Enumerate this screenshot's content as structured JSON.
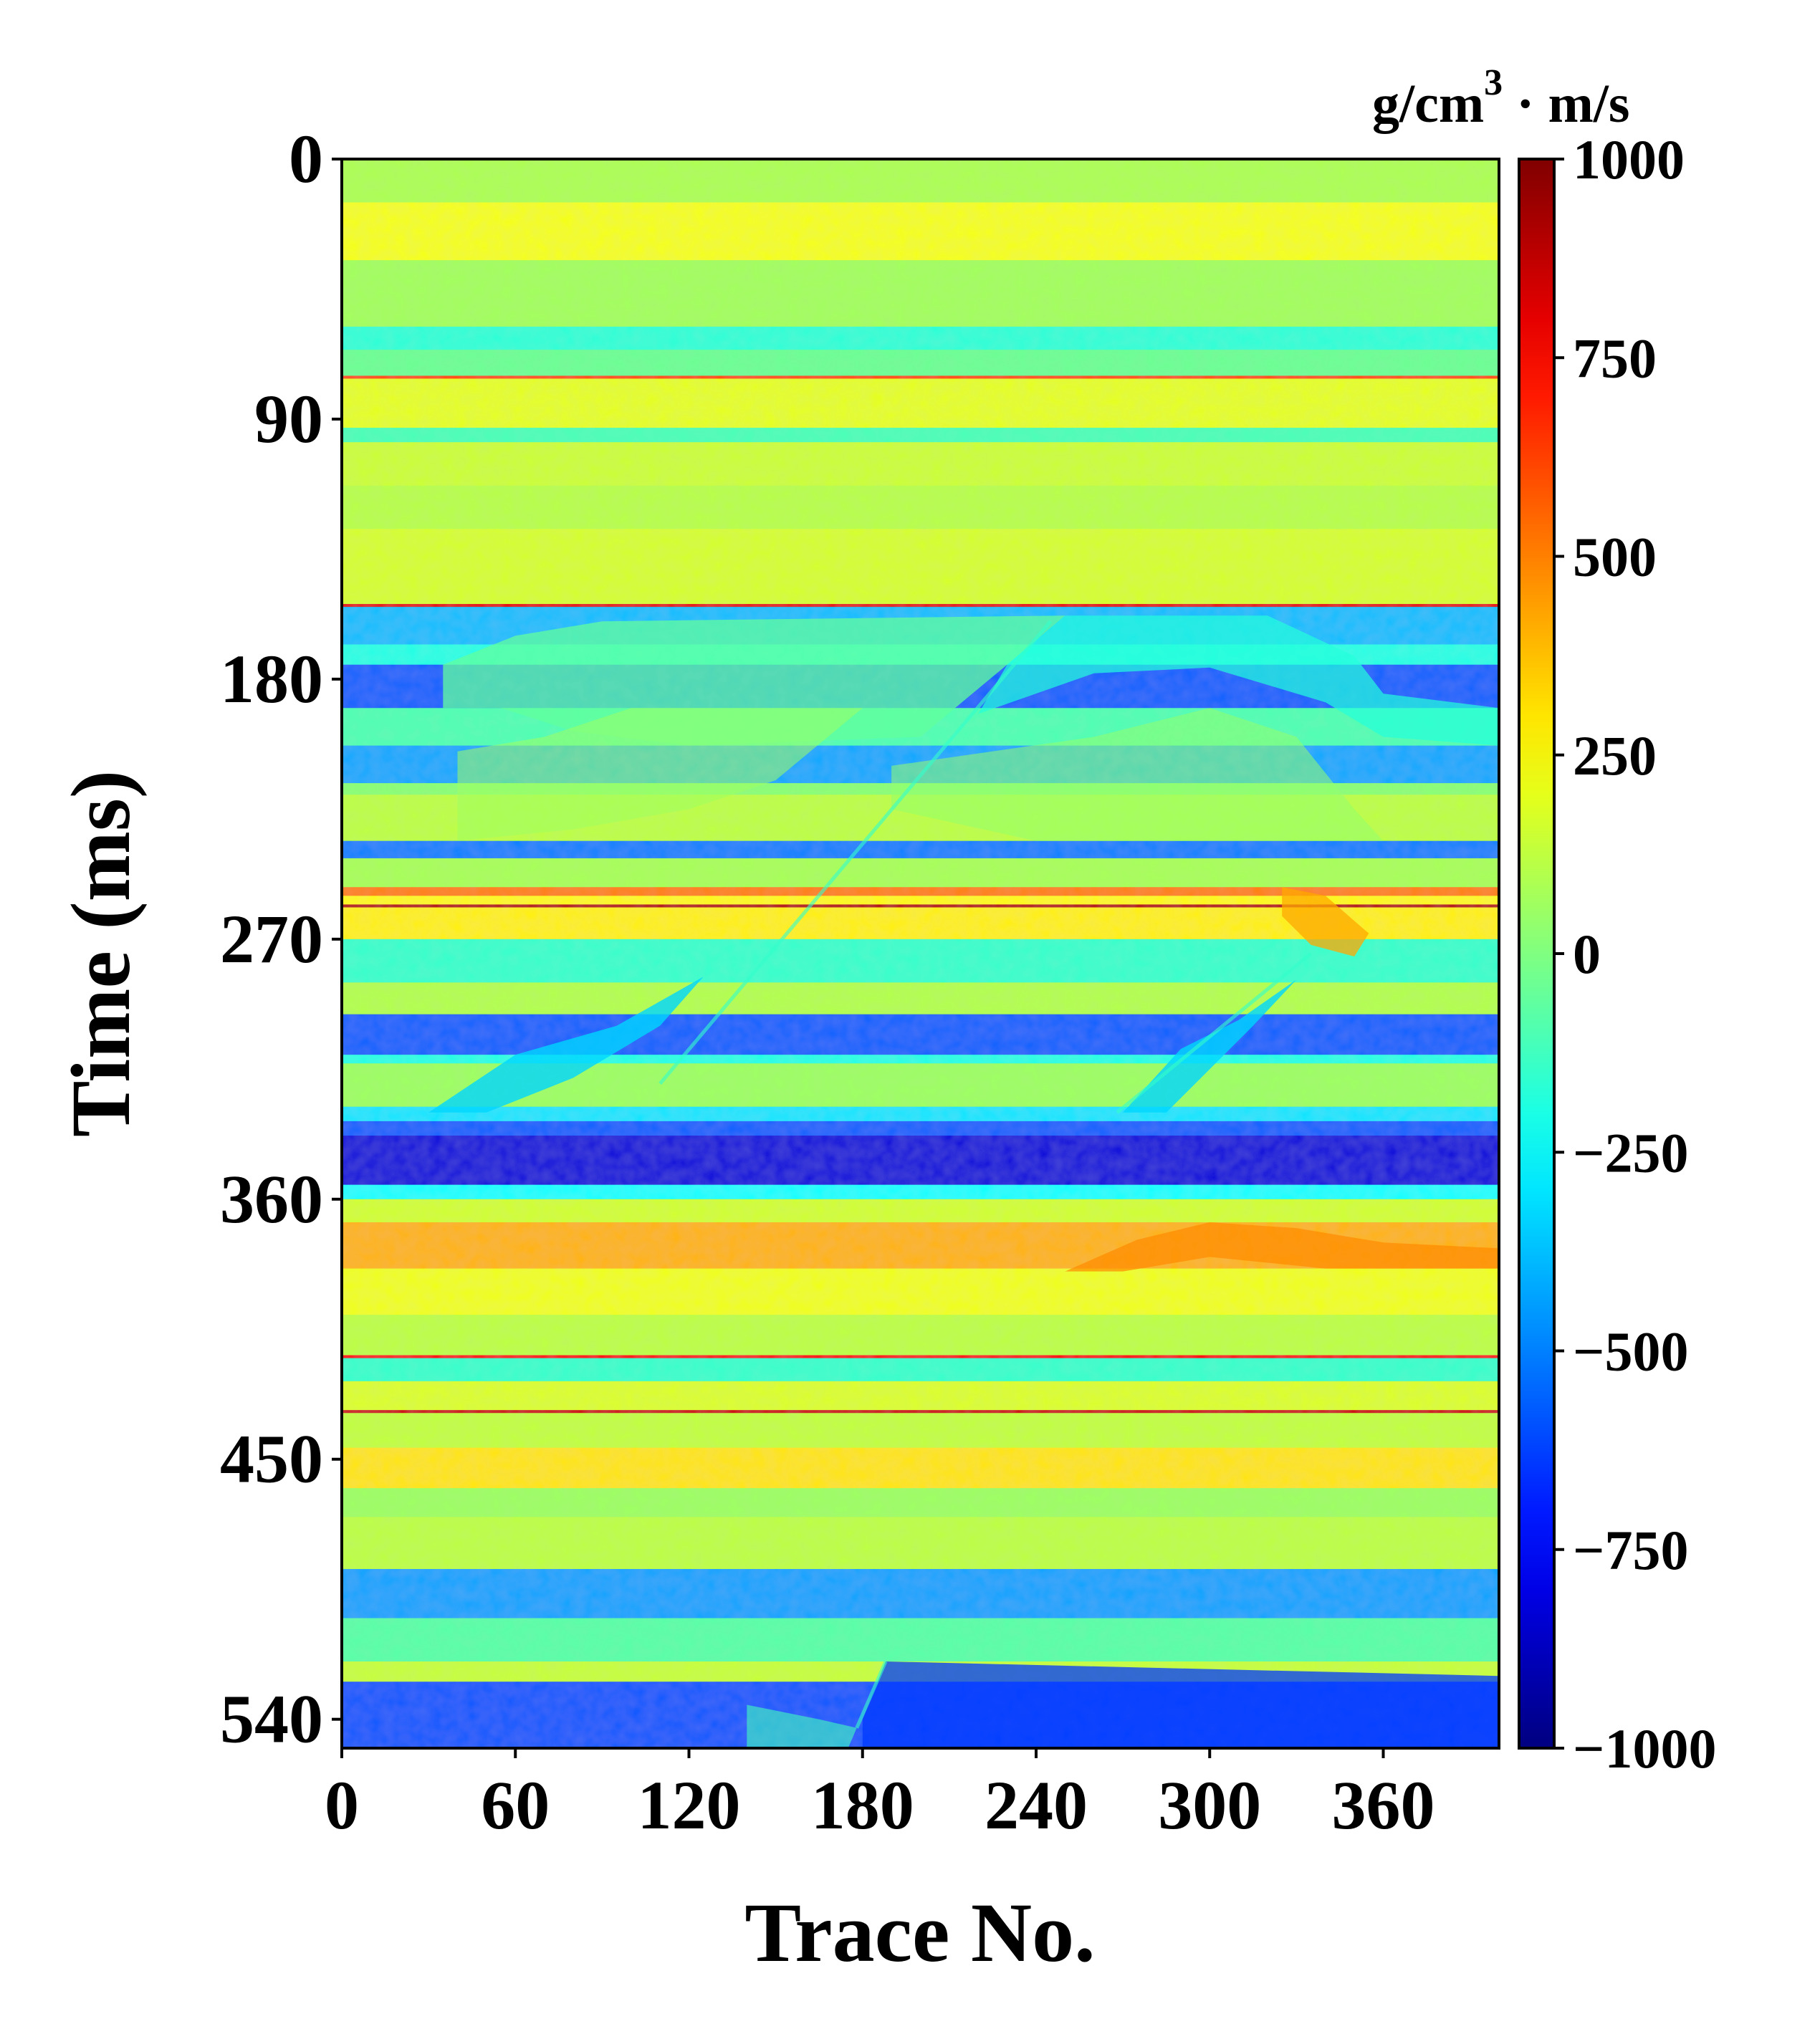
{
  "chart_data": {
    "type": "heatmap",
    "title": "",
    "xlabel": "Trace No.",
    "ylabel": "Time (ms)",
    "x_ticks": [
      "0",
      "60",
      "120",
      "180",
      "240",
      "300",
      "360"
    ],
    "x_tick_values": [
      0,
      60,
      120,
      180,
      240,
      300,
      360
    ],
    "y_ticks": [
      "0",
      "90",
      "180",
      "270",
      "360",
      "450",
      "540"
    ],
    "y_tick_values": [
      0,
      90,
      180,
      270,
      360,
      450,
      540
    ],
    "xlim": [
      0,
      400
    ],
    "ylim": [
      550,
      0
    ],
    "colormap": "jet",
    "colorbar": {
      "label_prefix": "g/cm",
      "label_exp": "3",
      "label_suffix": " · m/s",
      "range": [
        -1000,
        1000
      ],
      "ticks": [
        "1000",
        "750",
        "500",
        "250",
        "0",
        "−250",
        "−500",
        "−750",
        "−1000"
      ],
      "tick_values": [
        1000,
        750,
        500,
        250,
        0,
        -250,
        -500,
        -750,
        -1000
      ]
    },
    "grid": false,
    "layers": [
      {
        "top": 0,
        "bottom": 15,
        "value": 90
      },
      {
        "top": 15,
        "bottom": 35,
        "value": 230
      },
      {
        "top": 35,
        "bottom": 58,
        "value": 70
      },
      {
        "top": 58,
        "bottom": 66,
        "value": -170
      },
      {
        "top": 66,
        "bottom": 75,
        "value": -40
      },
      {
        "top": 75,
        "bottom": 76,
        "value": 600
      },
      {
        "top": 76,
        "bottom": 93,
        "value": 200
      },
      {
        "top": 93,
        "bottom": 98,
        "value": -110
      },
      {
        "top": 98,
        "bottom": 113,
        "value": 150
      },
      {
        "top": 113,
        "bottom": 128,
        "value": 110
      },
      {
        "top": 128,
        "bottom": 154,
        "value": 170
      },
      {
        "top": 154,
        "bottom": 155,
        "value": 800
      },
      {
        "top": 155,
        "bottom": 168,
        "value": -380
      },
      {
        "top": 168,
        "bottom": 175,
        "value": -200
      },
      {
        "top": 175,
        "bottom": 190,
        "value": -560
      },
      {
        "top": 190,
        "bottom": 203,
        "value": -100
      },
      {
        "top": 203,
        "bottom": 216,
        "value": -420
      },
      {
        "top": 216,
        "bottom": 220,
        "value": 20
      },
      {
        "top": 220,
        "bottom": 236,
        "value": 120
      },
      {
        "top": 236,
        "bottom": 242,
        "value": -500
      },
      {
        "top": 242,
        "bottom": 252,
        "value": 80
      },
      {
        "top": 252,
        "bottom": 255,
        "value": 500
      },
      {
        "top": 255,
        "bottom": 258,
        "value": 260
      },
      {
        "top": 258,
        "bottom": 259,
        "value": 900
      },
      {
        "top": 259,
        "bottom": 270,
        "value": 280
      },
      {
        "top": 270,
        "bottom": 285,
        "value": -150
      },
      {
        "top": 285,
        "bottom": 296,
        "value": 100
      },
      {
        "top": 296,
        "bottom": 310,
        "value": -560
      },
      {
        "top": 310,
        "bottom": 313,
        "value": -200
      },
      {
        "top": 313,
        "bottom": 328,
        "value": 60
      },
      {
        "top": 328,
        "bottom": 333,
        "value": -300
      },
      {
        "top": 333,
        "bottom": 338,
        "value": -560
      },
      {
        "top": 338,
        "bottom": 355,
        "value": -820
      },
      {
        "top": 355,
        "bottom": 360,
        "value": -250
      },
      {
        "top": 360,
        "bottom": 368,
        "value": 160
      },
      {
        "top": 368,
        "bottom": 384,
        "value": 400
      },
      {
        "top": 384,
        "bottom": 400,
        "value": 220
      },
      {
        "top": 400,
        "bottom": 414,
        "value": 120
      },
      {
        "top": 414,
        "bottom": 415,
        "value": 750
      },
      {
        "top": 415,
        "bottom": 423,
        "value": -150
      },
      {
        "top": 423,
        "bottom": 433,
        "value": 180
      },
      {
        "top": 433,
        "bottom": 434,
        "value": 850
      },
      {
        "top": 434,
        "bottom": 446,
        "value": 130
      },
      {
        "top": 446,
        "bottom": 460,
        "value": 300
      },
      {
        "top": 460,
        "bottom": 470,
        "value": 60
      },
      {
        "top": 470,
        "bottom": 488,
        "value": 120
      },
      {
        "top": 488,
        "bottom": 505,
        "value": -430
      },
      {
        "top": 505,
        "bottom": 520,
        "value": -80
      },
      {
        "top": 520,
        "bottom": 527,
        "value": 140
      },
      {
        "top": 527,
        "bottom": 550,
        "value": -580
      }
    ]
  }
}
